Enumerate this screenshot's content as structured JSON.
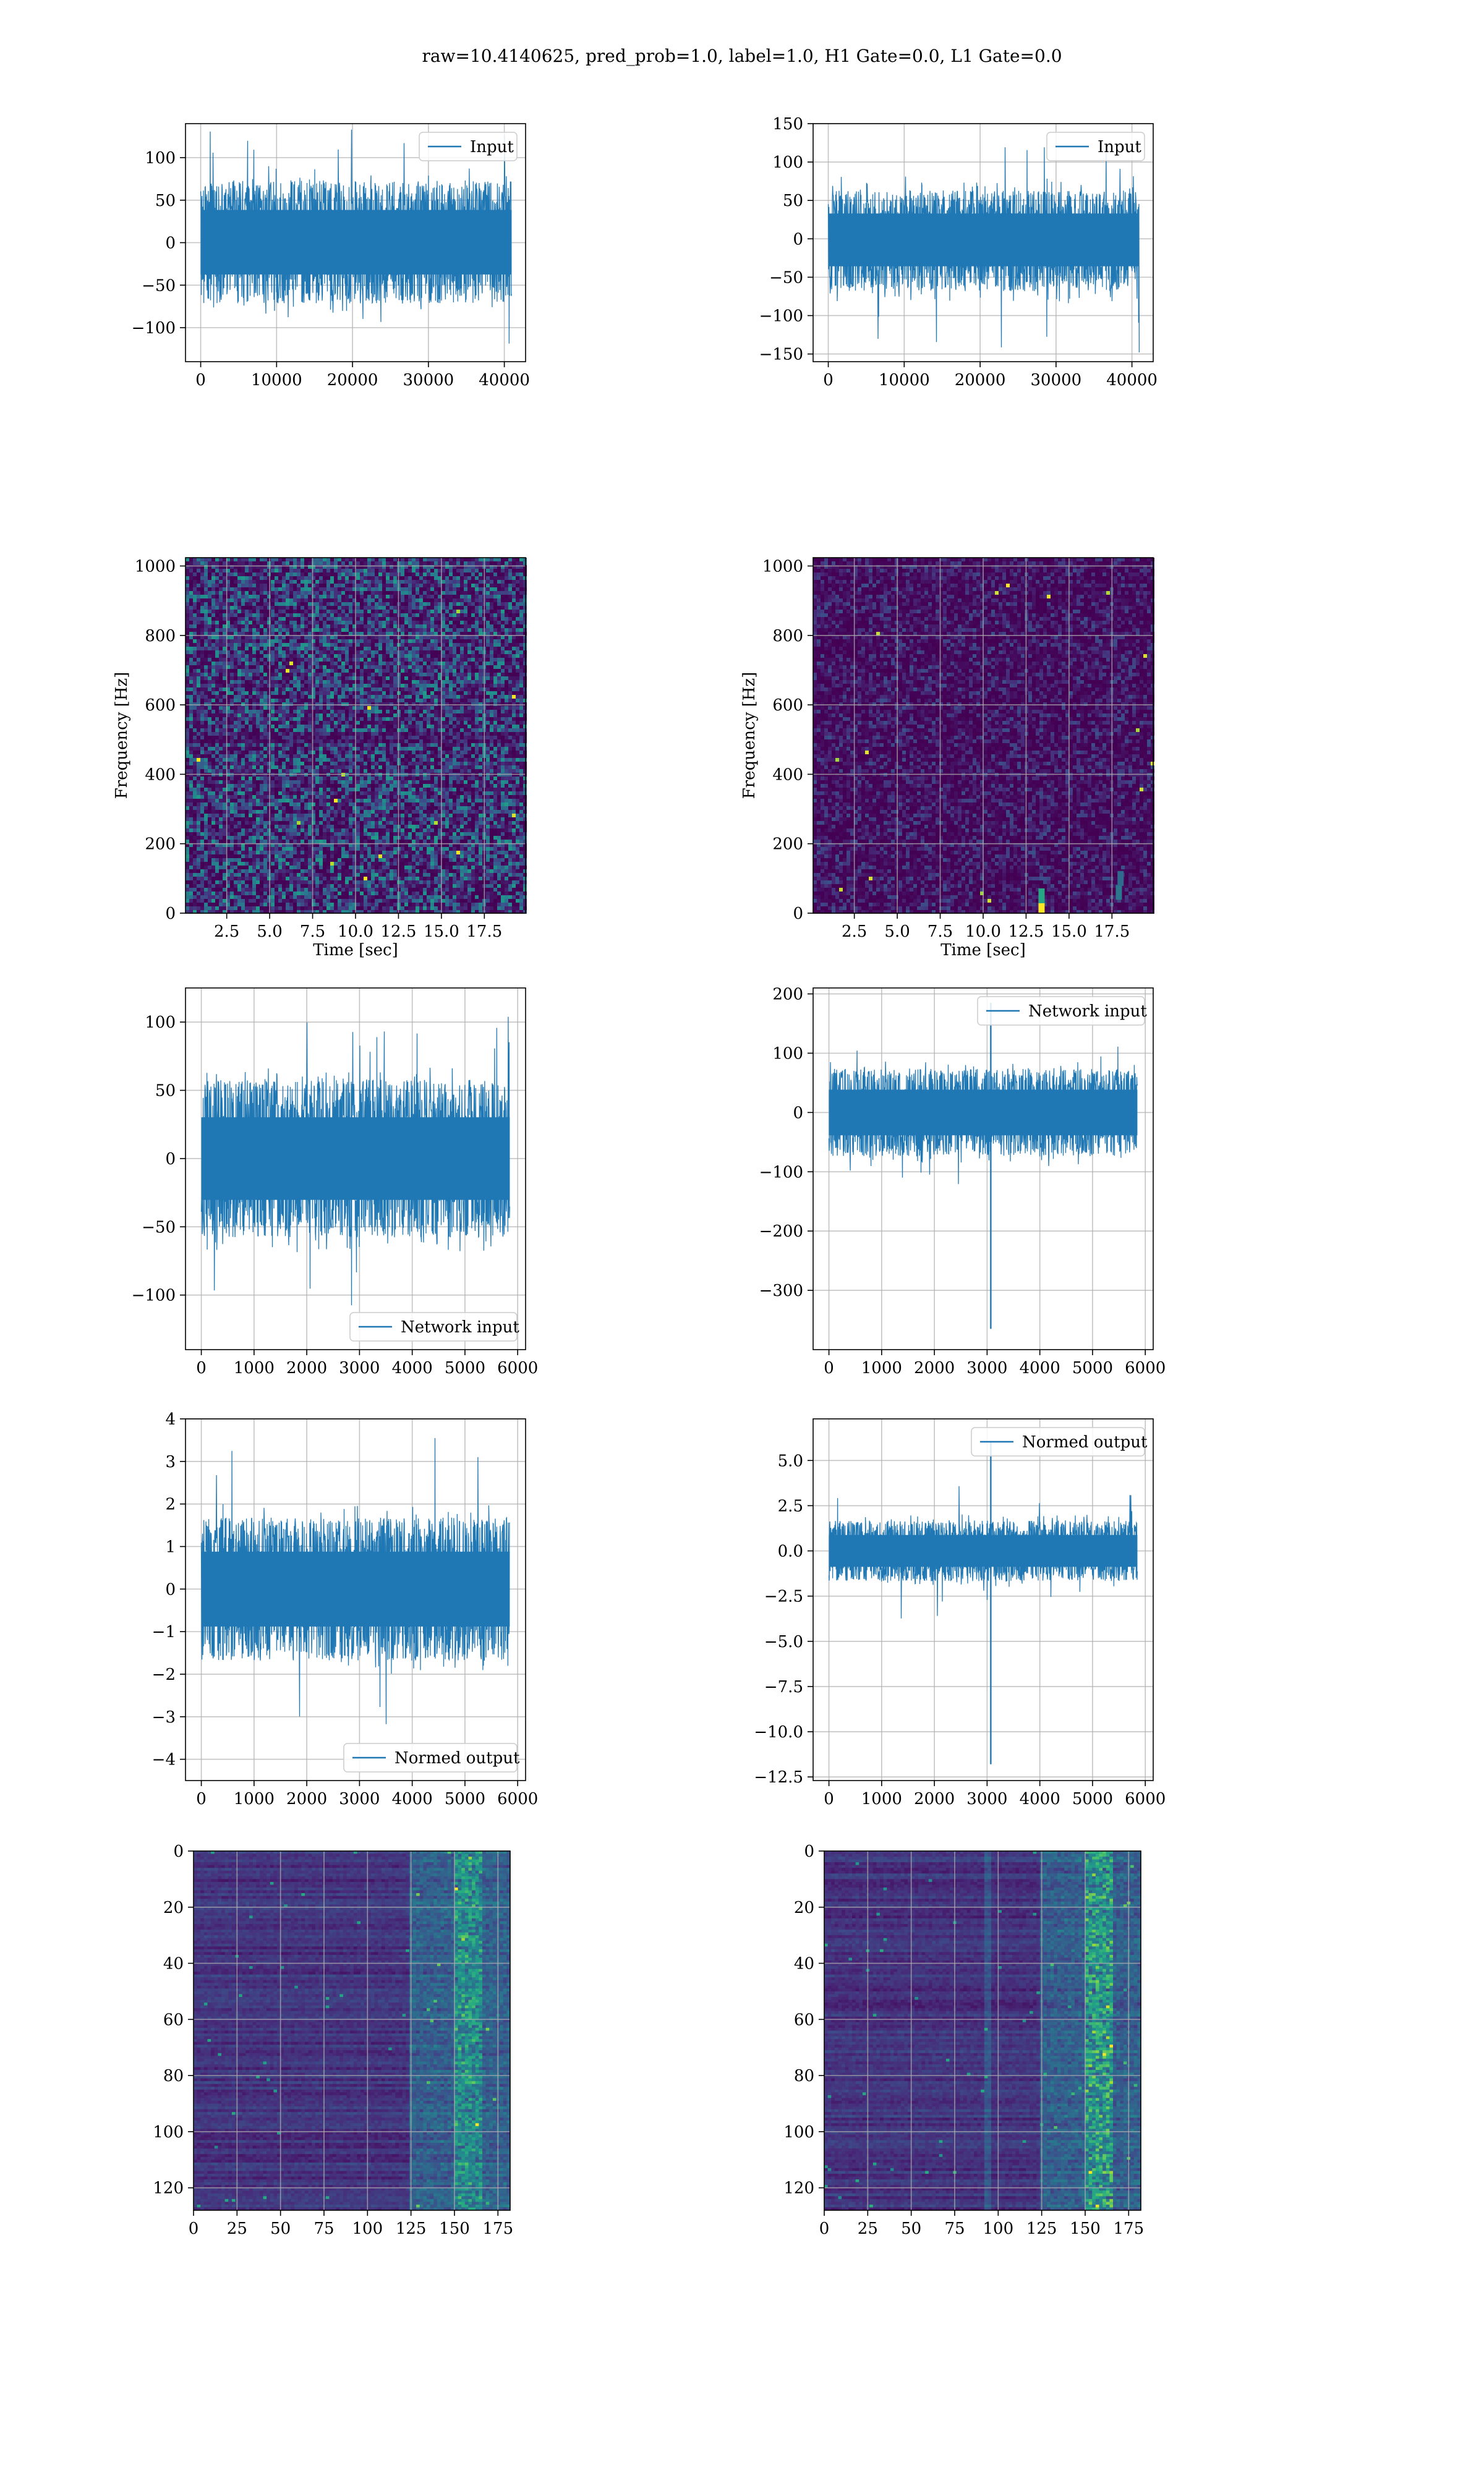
{
  "figure": {
    "title": "raw=10.4140625, pred_prob=1.0, label=1.0, H1 Gate=0.0, L1 Gate=0.0",
    "colors": {
      "line": "#1f77b4",
      "grid": "#b0b0b0",
      "viridis_low": "#440154",
      "viridis_high": "#fde725"
    }
  },
  "chart_data": [
    {
      "id": "input-h1",
      "type": "line",
      "title": "",
      "xlabel": "",
      "ylabel": "",
      "series": [
        {
          "name": "Input"
        }
      ],
      "legend": "upper-right",
      "xlim": [
        -2000,
        42800
      ],
      "ylim": [
        -140,
        140
      ],
      "xticks": [
        0,
        10000,
        20000,
        30000,
        40000
      ],
      "xtick_labels": [
        "0",
        "10000",
        "20000",
        "30000",
        "40000"
      ],
      "yticks": [
        100,
        50,
        0,
        -50,
        -100
      ],
      "ytick_labels": [
        "100",
        "50",
        "0",
        "−50",
        "−100"
      ],
      "signal": {
        "x_start": 0,
        "x_end": 40959,
        "y_band": [
          -68,
          70
        ],
        "y_peaks": [
          -125,
          136
        ]
      },
      "grid": true
    },
    {
      "id": "input-l1",
      "type": "line",
      "title": "",
      "xlabel": "",
      "ylabel": "",
      "series": [
        {
          "name": "Input"
        }
      ],
      "legend": "upper-right",
      "xlim": [
        -2000,
        42800
      ],
      "ylim": [
        -160,
        150
      ],
      "xticks": [
        0,
        10000,
        20000,
        30000,
        40000
      ],
      "xtick_labels": [
        "0",
        "10000",
        "20000",
        "30000",
        "40000"
      ],
      "yticks": [
        150,
        100,
        50,
        0,
        -50,
        -100,
        -150
      ],
      "ytick_labels": [
        "150",
        "100",
        "50",
        "0",
        "−50",
        "−100",
        "−150"
      ],
      "signal": {
        "x_start": 0,
        "x_end": 40959,
        "y_band": [
          -65,
          60
        ],
        "y_peaks": [
          -148,
          125
        ]
      },
      "grid": true
    },
    {
      "id": "spectrogram-h1",
      "type": "heatmap",
      "title": "",
      "xlabel": "Time [sec]",
      "ylabel": "Frequency [Hz]",
      "xlim": [
        0.1,
        19.9
      ],
      "ylim": [
        0,
        1024
      ],
      "xticks": [
        2.5,
        5.0,
        7.5,
        10.0,
        12.5,
        15.0,
        17.5
      ],
      "xtick_labels": [
        "2.5",
        "5.0",
        "7.5",
        "10.0",
        "12.5",
        "15.0",
        "17.5"
      ],
      "yticks": [
        0,
        200,
        400,
        600,
        800,
        1000
      ],
      "ytick_labels": [
        "0",
        "200",
        "400",
        "600",
        "800",
        "1000"
      ],
      "colormap": "viridis",
      "grid": true
    },
    {
      "id": "spectrogram-l1",
      "type": "heatmap",
      "title": "",
      "xlabel": "Time [sec]",
      "ylabel": "Frequency [Hz]",
      "xlim": [
        0.1,
        19.9
      ],
      "ylim": [
        0,
        1024
      ],
      "xticks": [
        2.5,
        5.0,
        7.5,
        10.0,
        12.5,
        15.0,
        17.5
      ],
      "xtick_labels": [
        "2.5",
        "5.0",
        "7.5",
        "10.0",
        "12.5",
        "15.0",
        "17.5"
      ],
      "yticks": [
        0,
        200,
        400,
        600,
        800,
        1000
      ],
      "ytick_labels": [
        "0",
        "200",
        "400",
        "600",
        "800",
        "1000"
      ],
      "colormap": "viridis",
      "grid": true
    },
    {
      "id": "network-input-h1",
      "type": "line",
      "title": "",
      "xlabel": "",
      "ylabel": "",
      "series": [
        {
          "name": "Network input"
        }
      ],
      "legend": "lower-right",
      "xlim": [
        -300,
        6150
      ],
      "ylim": [
        -140,
        125
      ],
      "xticks": [
        0,
        1000,
        2000,
        3000,
        4000,
        5000,
        6000
      ],
      "xtick_labels": [
        "0",
        "1000",
        "2000",
        "3000",
        "4000",
        "5000",
        "6000"
      ],
      "yticks": [
        100,
        50,
        0,
        -50,
        -100
      ],
      "ytick_labels": [
        "100",
        "50",
        "0",
        "−50",
        "−100"
      ],
      "signal": {
        "x_start": 0,
        "x_end": 5850,
        "y_band": [
          -55,
          55
        ],
        "y_peaks": [
          -125,
          110
        ]
      },
      "grid": true
    },
    {
      "id": "network-input-l1",
      "type": "line",
      "title": "",
      "xlabel": "",
      "ylabel": "",
      "series": [
        {
          "name": "Network input"
        }
      ],
      "legend": "upper-right",
      "xlim": [
        -300,
        6150
      ],
      "ylim": [
        -400,
        210
      ],
      "xticks": [
        0,
        1000,
        2000,
        3000,
        4000,
        5000,
        6000
      ],
      "xtick_labels": [
        "0",
        "1000",
        "2000",
        "3000",
        "4000",
        "5000",
        "6000"
      ],
      "yticks": [
        200,
        100,
        0,
        -100,
        -200,
        -300
      ],
      "ytick_labels": [
        "200",
        "100",
        "0",
        "−100",
        "−200",
        "−300"
      ],
      "signal": {
        "x_start": 0,
        "x_end": 5850,
        "y_band": [
          -70,
          70
        ],
        "y_peaks": [
          -125,
          120
        ],
        "spike_x": 3070,
        "spike_y": [
          -365,
          185
        ]
      },
      "grid": true
    },
    {
      "id": "normed-output-h1",
      "type": "line",
      "title": "",
      "xlabel": "",
      "ylabel": "",
      "series": [
        {
          "name": "Normed output"
        }
      ],
      "legend": "lower-right",
      "xlim": [
        -300,
        6150
      ],
      "ylim": [
        -4.5,
        4.0
      ],
      "xticks": [
        0,
        1000,
        2000,
        3000,
        4000,
        5000,
        6000
      ],
      "xtick_labels": [
        "0",
        "1000",
        "2000",
        "3000",
        "4000",
        "5000",
        "6000"
      ],
      "yticks": [
        4,
        3,
        2,
        1,
        0,
        -1,
        -2,
        -3,
        -4
      ],
      "ytick_labels": [
        "4",
        "3",
        "2",
        "1",
        "0",
        "−1",
        "−2",
        "−3",
        "−4"
      ],
      "signal": {
        "x_start": 0,
        "x_end": 5850,
        "y_band": [
          -1.6,
          1.6
        ],
        "y_peaks": [
          -4.1,
          3.6
        ]
      },
      "grid": true
    },
    {
      "id": "normed-output-l1",
      "type": "line",
      "title": "",
      "xlabel": "",
      "ylabel": "",
      "series": [
        {
          "name": "Normed output"
        }
      ],
      "legend": "upper-right",
      "xlim": [
        -300,
        6150
      ],
      "ylim": [
        -12.7,
        7.3
      ],
      "xticks": [
        0,
        1000,
        2000,
        3000,
        4000,
        5000,
        6000
      ],
      "xtick_labels": [
        "0",
        "1000",
        "2000",
        "3000",
        "4000",
        "5000",
        "6000"
      ],
      "yticks": [
        5.0,
        2.5,
        0.0,
        -2.5,
        -5.0,
        -7.5,
        -10.0,
        -12.5
      ],
      "ytick_labels": [
        "5.0",
        "2.5",
        "0.0",
        "−2.5",
        "−5.0",
        "−7.5",
        "−10.0",
        "−12.5"
      ],
      "signal": {
        "x_start": 0,
        "x_end": 5850,
        "y_band": [
          -1.6,
          1.6
        ],
        "y_peaks": [
          -3.8,
          3.6
        ],
        "spike_x": 3070,
        "spike_y": [
          -11.8,
          6.0
        ]
      },
      "grid": true
    },
    {
      "id": "features-h1",
      "type": "heatmap",
      "title": "",
      "xlabel": "",
      "ylabel": "",
      "xlim": [
        0,
        182
      ],
      "ylim": [
        0,
        128
      ],
      "y_inverted": true,
      "xticks": [
        0,
        25,
        50,
        75,
        100,
        125,
        150,
        175
      ],
      "xtick_labels": [
        "0",
        "25",
        "50",
        "75",
        "100",
        "125",
        "150",
        "175"
      ],
      "yticks": [
        0,
        20,
        40,
        60,
        80,
        100,
        120
      ],
      "ytick_labels": [
        "0",
        "20",
        "40",
        "60",
        "80",
        "100",
        "120"
      ],
      "colormap": "viridis",
      "grid": true
    },
    {
      "id": "features-l1",
      "type": "heatmap",
      "title": "",
      "xlabel": "",
      "ylabel": "",
      "xlim": [
        0,
        182
      ],
      "ylim": [
        0,
        128
      ],
      "y_inverted": true,
      "xticks": [
        0,
        25,
        50,
        75,
        100,
        125,
        150,
        175
      ],
      "xtick_labels": [
        "0",
        "25",
        "50",
        "75",
        "100",
        "125",
        "150",
        "175"
      ],
      "yticks": [
        0,
        20,
        40,
        60,
        80,
        100,
        120
      ],
      "ytick_labels": [
        "0",
        "20",
        "40",
        "60",
        "80",
        "100",
        "120"
      ],
      "colormap": "viridis",
      "grid": true
    }
  ]
}
